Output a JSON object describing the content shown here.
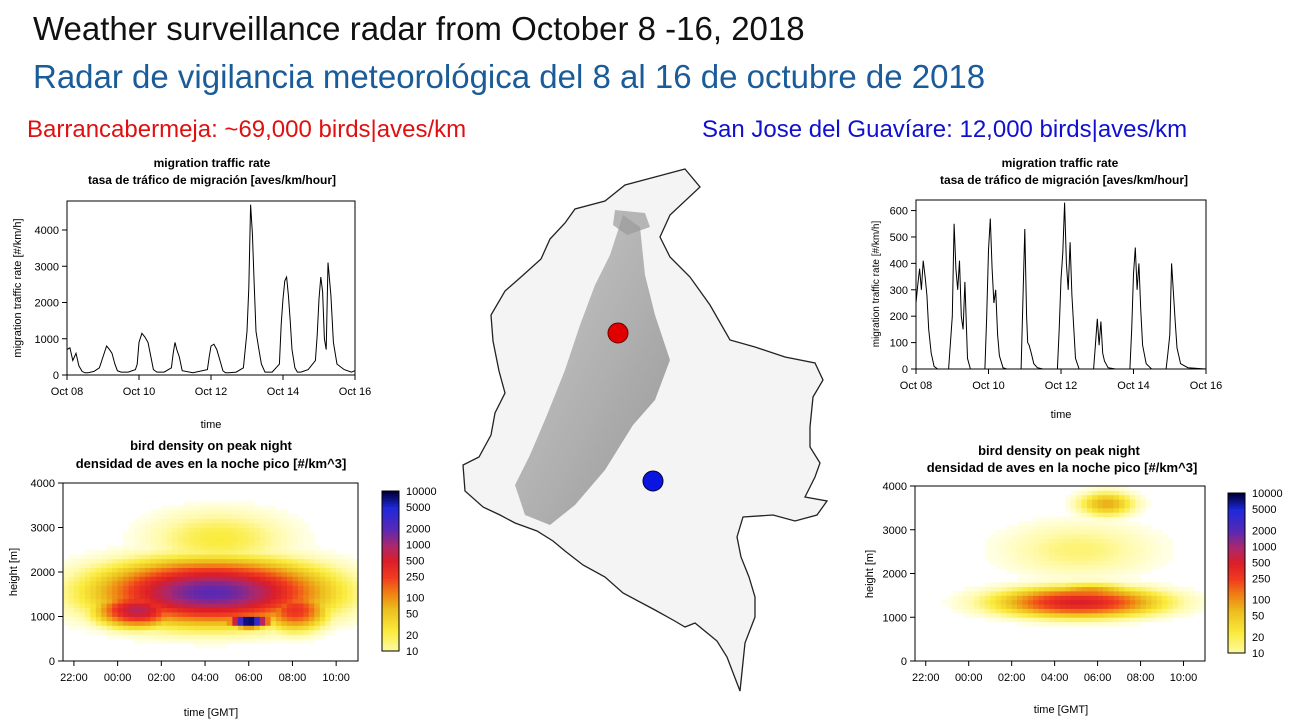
{
  "header": {
    "title_en": "Weather surveillance radar from October 8 -16, 2018",
    "title_es": "Radar de vigilancia meteorológica del 8 al 16 de octubre de 2018"
  },
  "stations": {
    "left": "Barrancabermeja: ~69,000 birds|aves/km",
    "right": "San Jose del Guavíare: 12,000 birds|aves/km"
  },
  "colors": {
    "left_marker": "#e00000",
    "right_marker": "#0a16e0",
    "title_es": "#1a5b99"
  },
  "chart_data": [
    {
      "id": "mtr-left",
      "type": "line",
      "title": "migration traffic rate",
      "subtitle": "tasa de tráfico de migración [aves/km/hour]",
      "xlabel": "time",
      "ylabel": "migration traffic rate [#/km/h]",
      "xlim": [
        8,
        16
      ],
      "ylim": [
        0,
        4800
      ],
      "xticks": [
        8,
        10,
        12,
        14,
        16
      ],
      "xtick_labels": [
        "Oct 08",
        "Oct 10",
        "Oct 12",
        "Oct 14",
        "Oct 16"
      ],
      "yticks": [
        0,
        1000,
        2000,
        3000,
        4000
      ],
      "ytick_labels": [
        "0",
        "1000",
        "2000",
        "3000",
        "4000"
      ],
      "series": [
        {
          "x": [
            8.0,
            8.08,
            8.16,
            8.25,
            8.33,
            8.42,
            8.5,
            8.58,
            8.66,
            8.75,
            8.9,
            9.0,
            9.05,
            9.1,
            9.18,
            9.25,
            9.33,
            9.4,
            9.5,
            9.7,
            9.9,
            9.95,
            10.0,
            10.08,
            10.16,
            10.25,
            10.33,
            10.4,
            10.5,
            10.7,
            10.9,
            10.95,
            11.0,
            11.05,
            11.12,
            11.2,
            11.5,
            11.9,
            11.95,
            12.0,
            12.08,
            12.16,
            12.25,
            12.33,
            12.4,
            12.5,
            12.7,
            12.9,
            12.95,
            13.0,
            13.05,
            13.1,
            13.15,
            13.2,
            13.25,
            13.33,
            13.4,
            13.5,
            13.7,
            13.9,
            13.95,
            14.0,
            14.05,
            14.1,
            14.15,
            14.2,
            14.25,
            14.33,
            14.4,
            14.5,
            14.7,
            14.9,
            14.95,
            15.0,
            15.05,
            15.1,
            15.15,
            15.2,
            15.25,
            15.33,
            15.4,
            15.5,
            15.7,
            15.9,
            16.0
          ],
          "y": [
            700,
            750,
            400,
            600,
            250,
            100,
            60,
            60,
            80,
            100,
            200,
            500,
            650,
            800,
            700,
            600,
            300,
            120,
            80,
            80,
            150,
            300,
            900,
            1150,
            1050,
            900,
            500,
            150,
            80,
            80,
            200,
            600,
            900,
            700,
            500,
            120,
            60,
            150,
            500,
            800,
            850,
            700,
            400,
            120,
            60,
            60,
            80,
            200,
            700,
            1200,
            2400,
            4700,
            3900,
            2500,
            1200,
            700,
            300,
            80,
            80,
            300,
            1400,
            2100,
            2600,
            2700,
            2200,
            1500,
            700,
            200,
            80,
            80,
            150,
            400,
            1100,
            2100,
            2700,
            2300,
            1000,
            700,
            3100,
            2200,
            900,
            300,
            150,
            80,
            120
          ]
        }
      ]
    },
    {
      "id": "mtr-right",
      "type": "line",
      "title": "migration traffic rate",
      "subtitle": "tasa de tráfico de migración [aves/km/hour]",
      "xlabel": "time",
      "ylabel": "migration traffic rate [#/km/h]",
      "xlim": [
        8,
        16
      ],
      "ylim": [
        0,
        640
      ],
      "xticks": [
        8,
        10,
        12,
        14,
        16
      ],
      "xtick_labels": [
        "Oct 08",
        "Oct 10",
        "Oct 12",
        "Oct 14",
        "Oct 16"
      ],
      "yticks": [
        0,
        100,
        200,
        300,
        400,
        500,
        600
      ],
      "ytick_labels": [
        "0",
        "100",
        "200",
        "300",
        "400",
        "500",
        "600"
      ],
      "series": [
        {
          "x": [
            8.0,
            8.05,
            8.1,
            8.15,
            8.2,
            8.25,
            8.3,
            8.35,
            8.42,
            8.5,
            8.6,
            8.9,
            9.0,
            9.05,
            9.1,
            9.15,
            9.2,
            9.25,
            9.3,
            9.35,
            9.42,
            9.5,
            9.9,
            9.95,
            10.0,
            10.05,
            10.1,
            10.15,
            10.2,
            10.25,
            10.3,
            10.4,
            10.5,
            10.9,
            11.0,
            11.05,
            11.08,
            11.12,
            11.18,
            11.25,
            11.35,
            11.5,
            11.9,
            11.95,
            12.0,
            12.05,
            12.1,
            12.15,
            12.2,
            12.25,
            12.3,
            12.4,
            12.5,
            12.9,
            12.95,
            13.0,
            13.05,
            13.1,
            13.15,
            13.2,
            13.3,
            13.5,
            13.9,
            13.95,
            14.0,
            14.05,
            14.1,
            14.15,
            14.2,
            14.25,
            14.35,
            14.5,
            14.9,
            14.95,
            15.0,
            15.05,
            15.1,
            15.15,
            15.2,
            15.3,
            15.5,
            16.0
          ],
          "y": [
            250,
            320,
            380,
            300,
            410,
            350,
            280,
            150,
            60,
            10,
            0,
            0,
            200,
            550,
            380,
            300,
            410,
            200,
            150,
            330,
            40,
            0,
            0,
            200,
            450,
            570,
            380,
            250,
            300,
            130,
            50,
            5,
            0,
            0,
            530,
            200,
            100,
            90,
            60,
            20,
            5,
            0,
            0,
            150,
            340,
            440,
            630,
            400,
            300,
            480,
            280,
            40,
            0,
            0,
            90,
            190,
            90,
            180,
            60,
            30,
            5,
            0,
            0,
            150,
            360,
            460,
            300,
            400,
            220,
            90,
            20,
            0,
            0,
            60,
            130,
            400,
            290,
            180,
            80,
            20,
            5,
            0
          ]
        }
      ]
    },
    {
      "id": "density-left",
      "type": "heatmap",
      "title": "bird density on peak night",
      "subtitle": "densidad de aves en la noche pico [#/km^3]",
      "xlabel": "time [GMT]",
      "ylabel": "height [m]",
      "xlim": [
        21.5,
        35
      ],
      "ylim": [
        0,
        4000
      ],
      "xticks": [
        22,
        24,
        26,
        28,
        30,
        32,
        34
      ],
      "xtick_labels": [
        "22:00",
        "00:00",
        "02:00",
        "04:00",
        "06:00",
        "08:00",
        "10:00"
      ],
      "yticks": [
        0,
        1000,
        2000,
        3000,
        4000
      ],
      "ytick_labels": [
        "0",
        "1000",
        "2000",
        "3000",
        "4000"
      ],
      "scale_ticks": [
        10000,
        5000,
        2000,
        1000,
        500,
        250,
        100,
        50,
        20,
        10
      ],
      "scale_labels": [
        "10000",
        "5000",
        "2000",
        "1000",
        "500",
        "250",
        "100",
        "50",
        "20",
        "10"
      ],
      "blobs": [
        {
          "t": 28.2,
          "h": 1500,
          "st": 6.5,
          "sh": 900,
          "v": 3.3
        },
        {
          "t": 29.9,
          "h": 850,
          "st": 1.1,
          "sh": 170,
          "v": 4.3
        },
        {
          "t": 24.8,
          "h": 1100,
          "st": 2.5,
          "sh": 500,
          "v": 2.9
        },
        {
          "t": 32.0,
          "h": 1100,
          "st": 2.0,
          "sh": 600,
          "v": 2.5
        },
        {
          "t": 28.5,
          "h": 2700,
          "st": 4.5,
          "sh": 900,
          "v": 1.4
        },
        {
          "t": 28.8,
          "h": 1700,
          "st": 1.6,
          "sh": 280,
          "v": 3.0
        }
      ]
    },
    {
      "id": "density-right",
      "type": "heatmap",
      "title": "bird density on peak night",
      "subtitle": "densidad de aves en la noche pico [#/km^3]",
      "xlabel": "time [GMT]",
      "ylabel": "height [m]",
      "xlim": [
        21.5,
        35
      ],
      "ylim": [
        0,
        4000
      ],
      "xticks": [
        22,
        24,
        26,
        28,
        30,
        32,
        34
      ],
      "xtick_labels": [
        "22:00",
        "00:00",
        "02:00",
        "04:00",
        "06:00",
        "08:00",
        "10:00"
      ],
      "yticks": [
        0,
        1000,
        2000,
        3000,
        4000
      ],
      "ytick_labels": [
        "0",
        "1000",
        "2000",
        "3000",
        "4000"
      ],
      "scale_ticks": [
        10000,
        5000,
        2000,
        1000,
        500,
        250,
        100,
        50,
        20,
        10
      ],
      "scale_labels": [
        "10000",
        "5000",
        "2000",
        "1000",
        "500",
        "250",
        "100",
        "50",
        "20",
        "10"
      ],
      "blobs": [
        {
          "t": 29.0,
          "h": 1300,
          "st": 5.0,
          "sh": 450,
          "v": 2.7
        },
        {
          "t": 29.5,
          "h": 1500,
          "st": 3.0,
          "sh": 300,
          "v": 2.2
        },
        {
          "t": 30.3,
          "h": 3550,
          "st": 1.8,
          "sh": 380,
          "v": 1.9
        },
        {
          "t": 29.0,
          "h": 2500,
          "st": 5.0,
          "sh": 900,
          "v": 1.2
        }
      ]
    }
  ],
  "map": {
    "markers": [
      {
        "name": "Barrancabermeja",
        "color": "#e00000"
      },
      {
        "name": "San Jose del Guavíare",
        "color": "#0a16e0"
      }
    ]
  }
}
